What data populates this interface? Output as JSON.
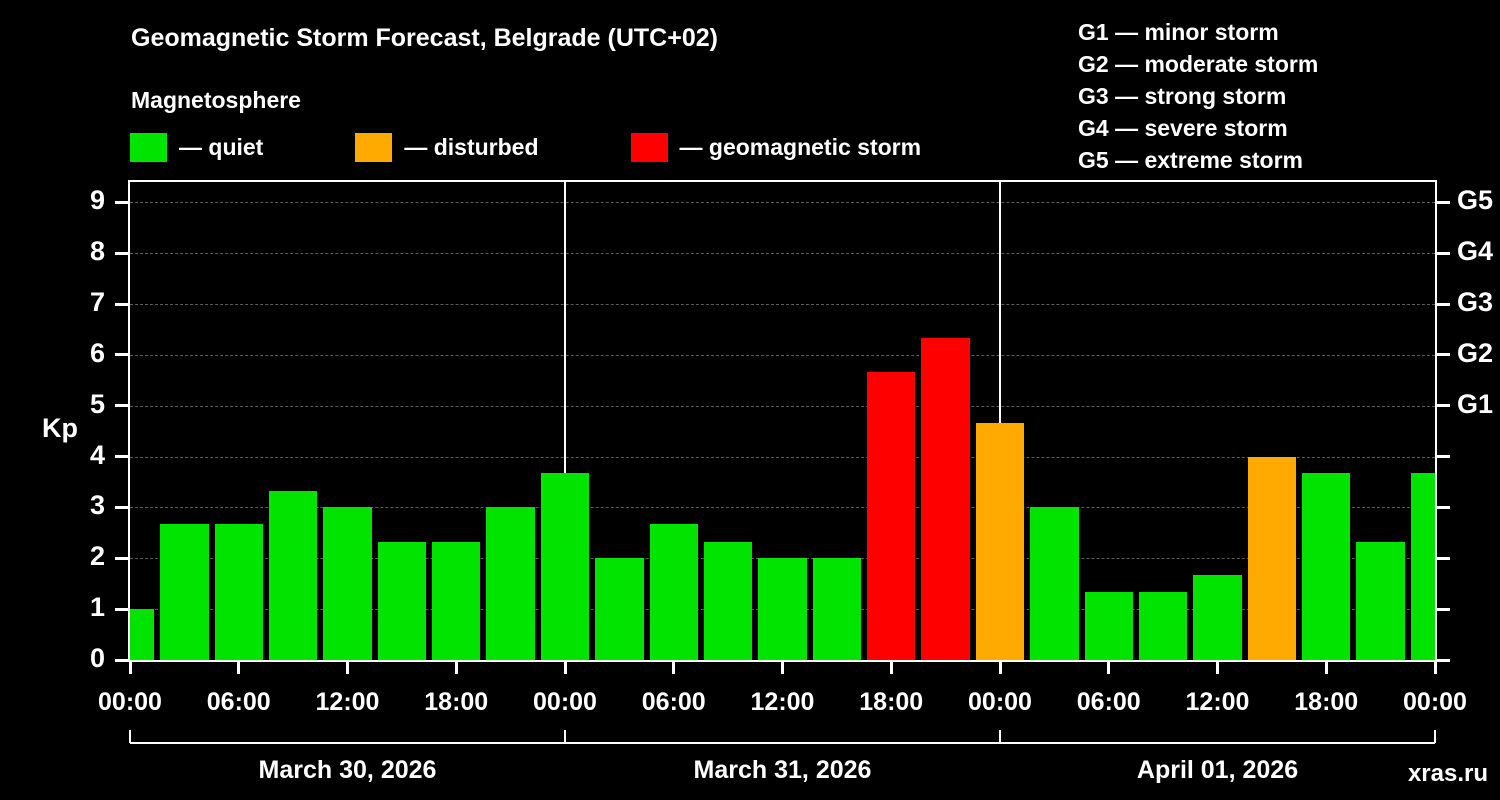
{
  "header": {
    "title": "Geomagnetic Storm Forecast, Belgrade (UTC+02)",
    "subtitle": "Magnetosphere",
    "watermark": "xras.ru"
  },
  "legend": {
    "items": [
      {
        "label": "— quiet",
        "status": "quiet"
      },
      {
        "label": "— disturbed",
        "status": "disturbed"
      },
      {
        "label": "— geomagnetic storm",
        "status": "storm"
      }
    ],
    "g_scale": [
      "G1 — minor storm",
      "G2 — moderate storm",
      "G3 — strong storm",
      "G4 — severe storm",
      "G5 — extreme storm"
    ]
  },
  "chart_data": {
    "type": "bar",
    "title": "Geomagnetic Storm Forecast, Belgrade (UTC+02)",
    "ylabel": "Kp",
    "ylim": [
      0,
      9.4
    ],
    "yticks": [
      0,
      1,
      2,
      3,
      4,
      5,
      6,
      7,
      8,
      9
    ],
    "right_axis": [
      {
        "label": "G1",
        "value": 5
      },
      {
        "label": "G2",
        "value": 6
      },
      {
        "label": "G3",
        "value": 7
      },
      {
        "label": "G4",
        "value": 8
      },
      {
        "label": "G5",
        "value": 9
      }
    ],
    "x_tick_labels": [
      "00:00",
      "06:00",
      "12:00",
      "18:00",
      "00:00",
      "06:00",
      "12:00",
      "18:00",
      "00:00",
      "06:00",
      "12:00",
      "18:00",
      "00:00"
    ],
    "days": [
      "March 30, 2026",
      "March 31, 2026",
      "April 01, 2026"
    ],
    "hours_per_bar": 3,
    "grid": true,
    "bar_colors": {
      "quiet": "#00e400",
      "disturbed": "#ffaa00",
      "storm": "#ff0000"
    },
    "values": [
      {
        "kp": 1.0,
        "status": "quiet"
      },
      {
        "kp": 2.67,
        "status": "quiet"
      },
      {
        "kp": 2.67,
        "status": "quiet"
      },
      {
        "kp": 3.33,
        "status": "quiet"
      },
      {
        "kp": 3.0,
        "status": "quiet"
      },
      {
        "kp": 2.33,
        "status": "quiet"
      },
      {
        "kp": 2.33,
        "status": "quiet"
      },
      {
        "kp": 3.0,
        "status": "quiet"
      },
      {
        "kp": 3.67,
        "status": "quiet"
      },
      {
        "kp": 2.0,
        "status": "quiet"
      },
      {
        "kp": 2.67,
        "status": "quiet"
      },
      {
        "kp": 2.33,
        "status": "quiet"
      },
      {
        "kp": 2.0,
        "status": "quiet"
      },
      {
        "kp": 2.0,
        "status": "quiet"
      },
      {
        "kp": 5.67,
        "status": "storm"
      },
      {
        "kp": 6.33,
        "status": "storm"
      },
      {
        "kp": 4.67,
        "status": "disturbed"
      },
      {
        "kp": 3.0,
        "status": "quiet"
      },
      {
        "kp": 1.33,
        "status": "quiet"
      },
      {
        "kp": 1.33,
        "status": "quiet"
      },
      {
        "kp": 1.67,
        "status": "quiet"
      },
      {
        "kp": 4.0,
        "status": "disturbed"
      },
      {
        "kp": 3.67,
        "status": "quiet"
      },
      {
        "kp": 2.33,
        "status": "quiet"
      },
      {
        "kp": 3.67,
        "status": "quiet"
      }
    ]
  }
}
